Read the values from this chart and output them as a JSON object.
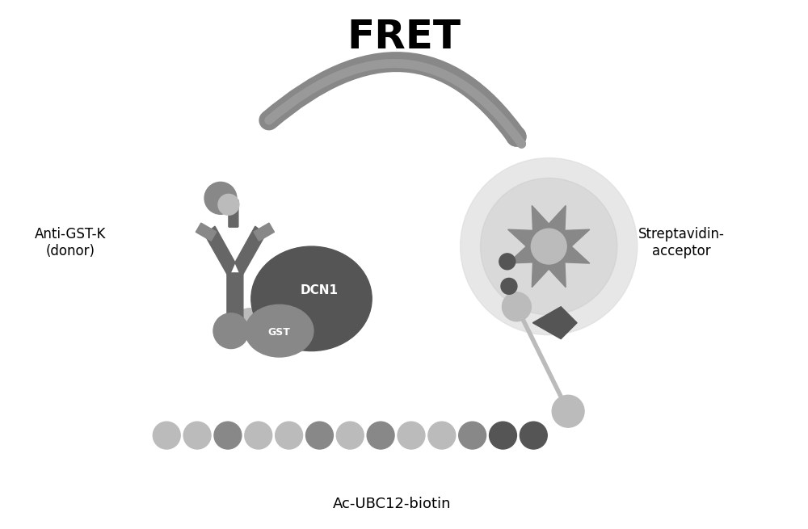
{
  "title": "FRET",
  "title_fontsize": 36,
  "title_fontweight": "bold",
  "bg_color": "#ffffff",
  "label_anti_gst": "Anti-GST-K\n(donor)",
  "label_strep": "Streptavidin-\nacceptor",
  "label_ubc12": "Ac-UBC12-biotin",
  "label_dcn1": "DCN1",
  "label_gst": "GST",
  "color_dark_gray": "#555555",
  "color_mid_gray": "#888888",
  "color_light_gray": "#bbbbbb",
  "color_antibody": "#666666",
  "figsize": [
    10,
    6.55
  ],
  "dpi": 100
}
